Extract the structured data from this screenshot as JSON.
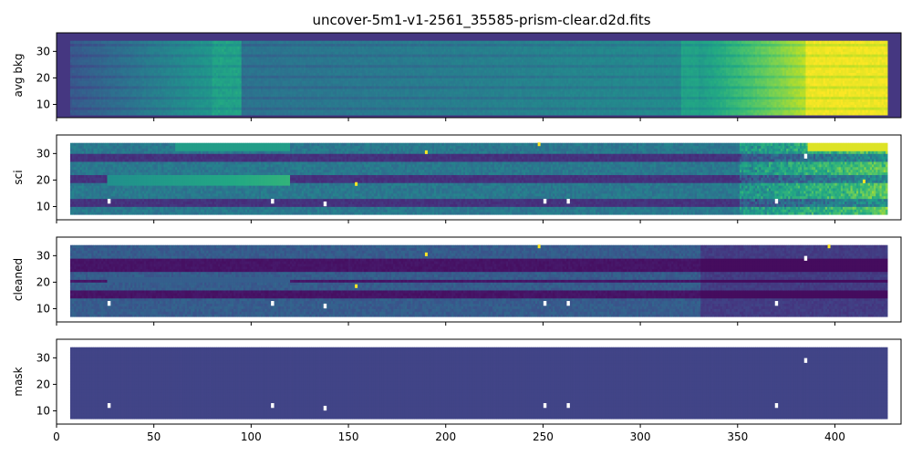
{
  "chart_data": {
    "type": "heatmap",
    "title": "uncover-5m1-v1-2561_35585-prism-clear.d2d.fits",
    "shared_x": true,
    "xlim": [
      0,
      434
    ],
    "xticks": [
      0,
      50,
      100,
      150,
      200,
      250,
      300,
      350,
      400
    ],
    "colormap": "viridis",
    "panels": [
      {
        "name": "avg-bkg",
        "ylabel": "avg bkg",
        "ylim": [
          5,
          37
        ],
        "yticks": [
          10,
          20,
          30
        ],
        "data_x_range": [
          7,
          427
        ],
        "data_y_range": [
          6,
          34
        ],
        "fill_outside_data": "#453781",
        "trend": "dark blue on the left rising to teal around x~90, green near x~350 and saturated yellow x>385",
        "colors": {
          "low": "#3b528b",
          "mid": "#21918c",
          "high": "#fde725"
        }
      },
      {
        "name": "sci",
        "ylabel": "sci",
        "ylim": [
          5,
          37
        ],
        "yticks": [
          10,
          20,
          30
        ],
        "data_x_range": [
          7,
          427
        ],
        "data_y_range": [
          7,
          34
        ],
        "trace_rows": [
          11,
          20,
          28
        ],
        "bright_spots": [
          [
            190,
            30.5
          ],
          [
            248,
            33.5
          ],
          [
            154,
            18.5
          ],
          [
            415,
            19.5
          ]
        ],
        "masked_pixels": [
          [
            27,
            12
          ],
          [
            111,
            12
          ],
          [
            138,
            11
          ],
          [
            251,
            12
          ],
          [
            263,
            12
          ],
          [
            370,
            12
          ],
          [
            385,
            29
          ]
        ],
        "colors": {
          "low": "#440154",
          "mid": "#31688e",
          "high": "#fde725"
        }
      },
      {
        "name": "cleaned",
        "ylabel": "cleaned",
        "ylim": [
          5,
          37
        ],
        "yticks": [
          10,
          20,
          30
        ],
        "data_x_range": [
          7,
          427
        ],
        "data_y_range": [
          7,
          34
        ],
        "trace_rows": [
          15,
          20,
          26
        ],
        "bright_spots": [
          [
            190,
            30.5
          ],
          [
            248,
            33.5
          ],
          [
            154,
            18.5
          ],
          [
            397,
            33.5
          ]
        ],
        "masked_pixels": [
          [
            27,
            12
          ],
          [
            111,
            12
          ],
          [
            138,
            11
          ],
          [
            251,
            12
          ],
          [
            263,
            12
          ],
          [
            370,
            12
          ],
          [
            385,
            29
          ]
        ],
        "colors": {
          "low": "#440154",
          "mid": "#3b528b",
          "high": "#fde725"
        }
      },
      {
        "name": "mask",
        "ylabel": "mask",
        "ylim": [
          5,
          37
        ],
        "yticks": [
          10,
          20,
          30
        ],
        "data_x_range": [
          7,
          427
        ],
        "data_y_range": [
          7,
          34
        ],
        "masked_pixels": [
          [
            27,
            12
          ],
          [
            111,
            12
          ],
          [
            138,
            11
          ],
          [
            251,
            12
          ],
          [
            263,
            12
          ],
          [
            370,
            12
          ],
          [
            385,
            29
          ]
        ],
        "colors": {
          "fill": "#414487",
          "masked": "#ffffff"
        }
      }
    ]
  }
}
